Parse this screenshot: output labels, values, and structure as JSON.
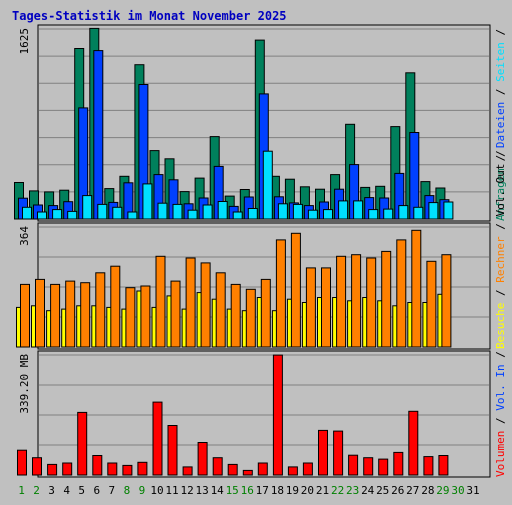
{
  "chart_data": {
    "type": "bar",
    "title": "Tages-Statistik im Monat November 2025",
    "categories": [
      "1",
      "2",
      "3",
      "4",
      "5",
      "6",
      "7",
      "8",
      "9",
      "10",
      "11",
      "12",
      "13",
      "14",
      "15",
      "16",
      "17",
      "18",
      "19",
      "20",
      "21",
      "22",
      "23",
      "24",
      "25",
      "26",
      "27",
      "28",
      "29",
      "30",
      "31"
    ],
    "weekend_days": [
      "1",
      "2",
      "8",
      "9",
      "15",
      "16",
      "22",
      "23",
      "29",
      "30"
    ],
    "colors": {
      "title": "#0000c0",
      "weekday_label": "#000000",
      "weekend_label": "#008000",
      "anfragen": "#00805c",
      "dateien": "#0040ff",
      "seiten": "#00e0ff",
      "besuche": "#ffff00",
      "rechner": "#ff8000",
      "volumen": "#ff0000"
    },
    "panels": [
      {
        "name": "hits",
        "max_label": "1625",
        "ylim": [
          0,
          1625
        ],
        "series": [
          {
            "name": "Anfragen",
            "values": [
              312,
              240,
              232,
              246,
              1458,
              1630,
              260,
              365,
              1320,
              585,
              515,
              234,
              350,
              705,
              196,
              252,
              1530,
              365,
              340,
              275,
              255,
              380,
              810,
              270,
              280,
              790,
              1250,
              320,
              265
            ]
          },
          {
            "name": "Dateien",
            "values": [
              178,
              120,
              115,
              148,
              950,
              1440,
              142,
              310,
              1150,
              380,
              335,
              130,
              180,
              450,
              108,
              188,
              1070,
              190,
              138,
              115,
              145,
              255,
              465,
              183,
              180,
              390,
              740,
              200,
              165
            ]
          },
          {
            "name": "Seiten",
            "values": [
              100,
              60,
              80,
              65,
              200,
              125,
              100,
              60,
              300,
              135,
              125,
              75,
              120,
              150,
              60,
              90,
              580,
              130,
              125,
              75,
              80,
              155,
              155,
              80,
              85,
              115,
              100,
              140,
              145
            ]
          }
        ],
        "legend": [
          {
            "text": "Anfragen",
            "color_key": "anfragen"
          },
          {
            "text": "/",
            "color_key": "weekday_label"
          },
          {
            "text": "Dateien",
            "color_key": "dateien"
          },
          {
            "text": "/",
            "color_key": "weekday_label"
          },
          {
            "text": "Seiten",
            "color_key": "seiten"
          },
          {
            "text": "/",
            "color_key": "weekday_label"
          }
        ]
      },
      {
        "name": "visits",
        "max_label": "364",
        "ylim": [
          0,
          364
        ],
        "series": [
          {
            "name": "Besuche",
            "values": [
              120,
              125,
              110,
              115,
              125,
              125,
              120,
              115,
              170,
              120,
              155,
              115,
              165,
              145,
              115,
              110,
              150,
              110,
              145,
              135,
              150,
              150,
              140,
              150,
              140,
              125,
              135,
              135,
              160
            ]
          },
          {
            "name": "Rechner",
            "values": [
              190,
              205,
              190,
              200,
              195,
              225,
              245,
              180,
              185,
              275,
              200,
              270,
              255,
              225,
              190,
              175,
              205,
              325,
              345,
              240,
              240,
              275,
              280,
              270,
              290,
              325,
              354,
              260,
              280
            ]
          }
        ],
        "legend": [
          {
            "text": "Besuche",
            "color_key": "besuche"
          },
          {
            "text": "/",
            "color_key": "weekday_label"
          },
          {
            "text": "Rechner",
            "color_key": "rechner"
          },
          {
            "text": "/",
            "color_key": "weekday_label"
          },
          {
            "text": "Vol. Out",
            "color_key": "weekday_label"
          },
          {
            "text": "/",
            "color_key": "weekday_label"
          }
        ]
      },
      {
        "name": "volume",
        "max_label": "339.20 MB",
        "ylim": [
          0,
          339.2
        ],
        "series": [
          {
            "name": "Volumen",
            "values": [
              70,
              49,
              30,
              34,
              177,
              55,
              34,
              27,
              36,
              206,
              140,
              23,
              92,
              49,
              30,
              13,
              34,
              339,
              23,
              34,
              126,
              124,
              56,
              49,
              45,
              64,
              180,
              52,
              55
            ]
          }
        ],
        "legend": [
          {
            "text": "Volumen",
            "color_key": "volumen"
          },
          {
            "text": "/",
            "color_key": "weekday_label"
          },
          {
            "text": "Vol. In",
            "color_key": "dateien"
          },
          {
            "text": "/",
            "color_key": "weekday_label"
          }
        ]
      }
    ]
  }
}
